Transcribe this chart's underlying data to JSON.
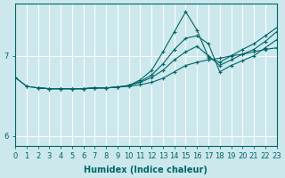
{
  "xlabel": "Humidex (Indice chaleur)",
  "bg_color": "#cce8ed",
  "line_color": "#006666",
  "grid_color": "#ffffff",
  "xlim": [
    0,
    23
  ],
  "ylim": [
    5.88,
    7.65
  ],
  "yticks": [
    6,
    7
  ],
  "xticks": [
    0,
    1,
    2,
    3,
    4,
    5,
    6,
    7,
    8,
    9,
    10,
    11,
    12,
    13,
    14,
    15,
    16,
    17,
    18,
    19,
    20,
    21,
    22,
    23
  ],
  "lines": [
    {
      "x": [
        0,
        1,
        2,
        3,
        4,
        5,
        6,
        7,
        8,
        9,
        10,
        11,
        12,
        13,
        14,
        15,
        16,
        17,
        18,
        19,
        20,
        21,
        22,
        23
      ],
      "y": [
        6.73,
        6.62,
        6.6,
        6.59,
        6.59,
        6.59,
        6.59,
        6.6,
        6.6,
        6.61,
        6.62,
        6.64,
        6.67,
        6.72,
        6.8,
        6.88,
        6.92,
        6.95,
        6.97,
        7.0,
        7.02,
        7.05,
        7.08,
        7.1
      ]
    },
    {
      "x": [
        0,
        1,
        2,
        3,
        4,
        5,
        6,
        7,
        8,
        9,
        10,
        11,
        12,
        13,
        14,
        15,
        16,
        17,
        18,
        19,
        20,
        21,
        22,
        23
      ],
      "y": [
        6.73,
        6.62,
        6.6,
        6.59,
        6.59,
        6.59,
        6.59,
        6.6,
        6.6,
        6.61,
        6.63,
        6.7,
        6.82,
        7.05,
        7.3,
        7.55,
        7.32,
        6.98,
        6.92,
        7.0,
        7.08,
        7.15,
        7.25,
        7.35
      ]
    },
    {
      "x": [
        2,
        3,
        4,
        5,
        6,
        7,
        8,
        9,
        10,
        11,
        12,
        13,
        14,
        15,
        16,
        17,
        18,
        19,
        20,
        21,
        22,
        23
      ],
      "y": [
        6.6,
        6.59,
        6.59,
        6.59,
        6.59,
        6.6,
        6.6,
        6.61,
        6.63,
        6.68,
        6.76,
        6.9,
        7.08,
        7.22,
        7.25,
        7.15,
        6.8,
        6.88,
        6.94,
        7.0,
        7.1,
        7.2
      ]
    },
    {
      "x": [
        2,
        3,
        4,
        5,
        6,
        7,
        8,
        9,
        10,
        11,
        12,
        13,
        14,
        15,
        16,
        17,
        18,
        19,
        20,
        21,
        22,
        23
      ],
      "y": [
        6.6,
        6.59,
        6.59,
        6.59,
        6.59,
        6.6,
        6.6,
        6.61,
        6.63,
        6.67,
        6.73,
        6.82,
        6.95,
        7.05,
        7.12,
        7.0,
        6.88,
        6.95,
        7.02,
        7.08,
        7.18,
        7.3
      ]
    }
  ]
}
